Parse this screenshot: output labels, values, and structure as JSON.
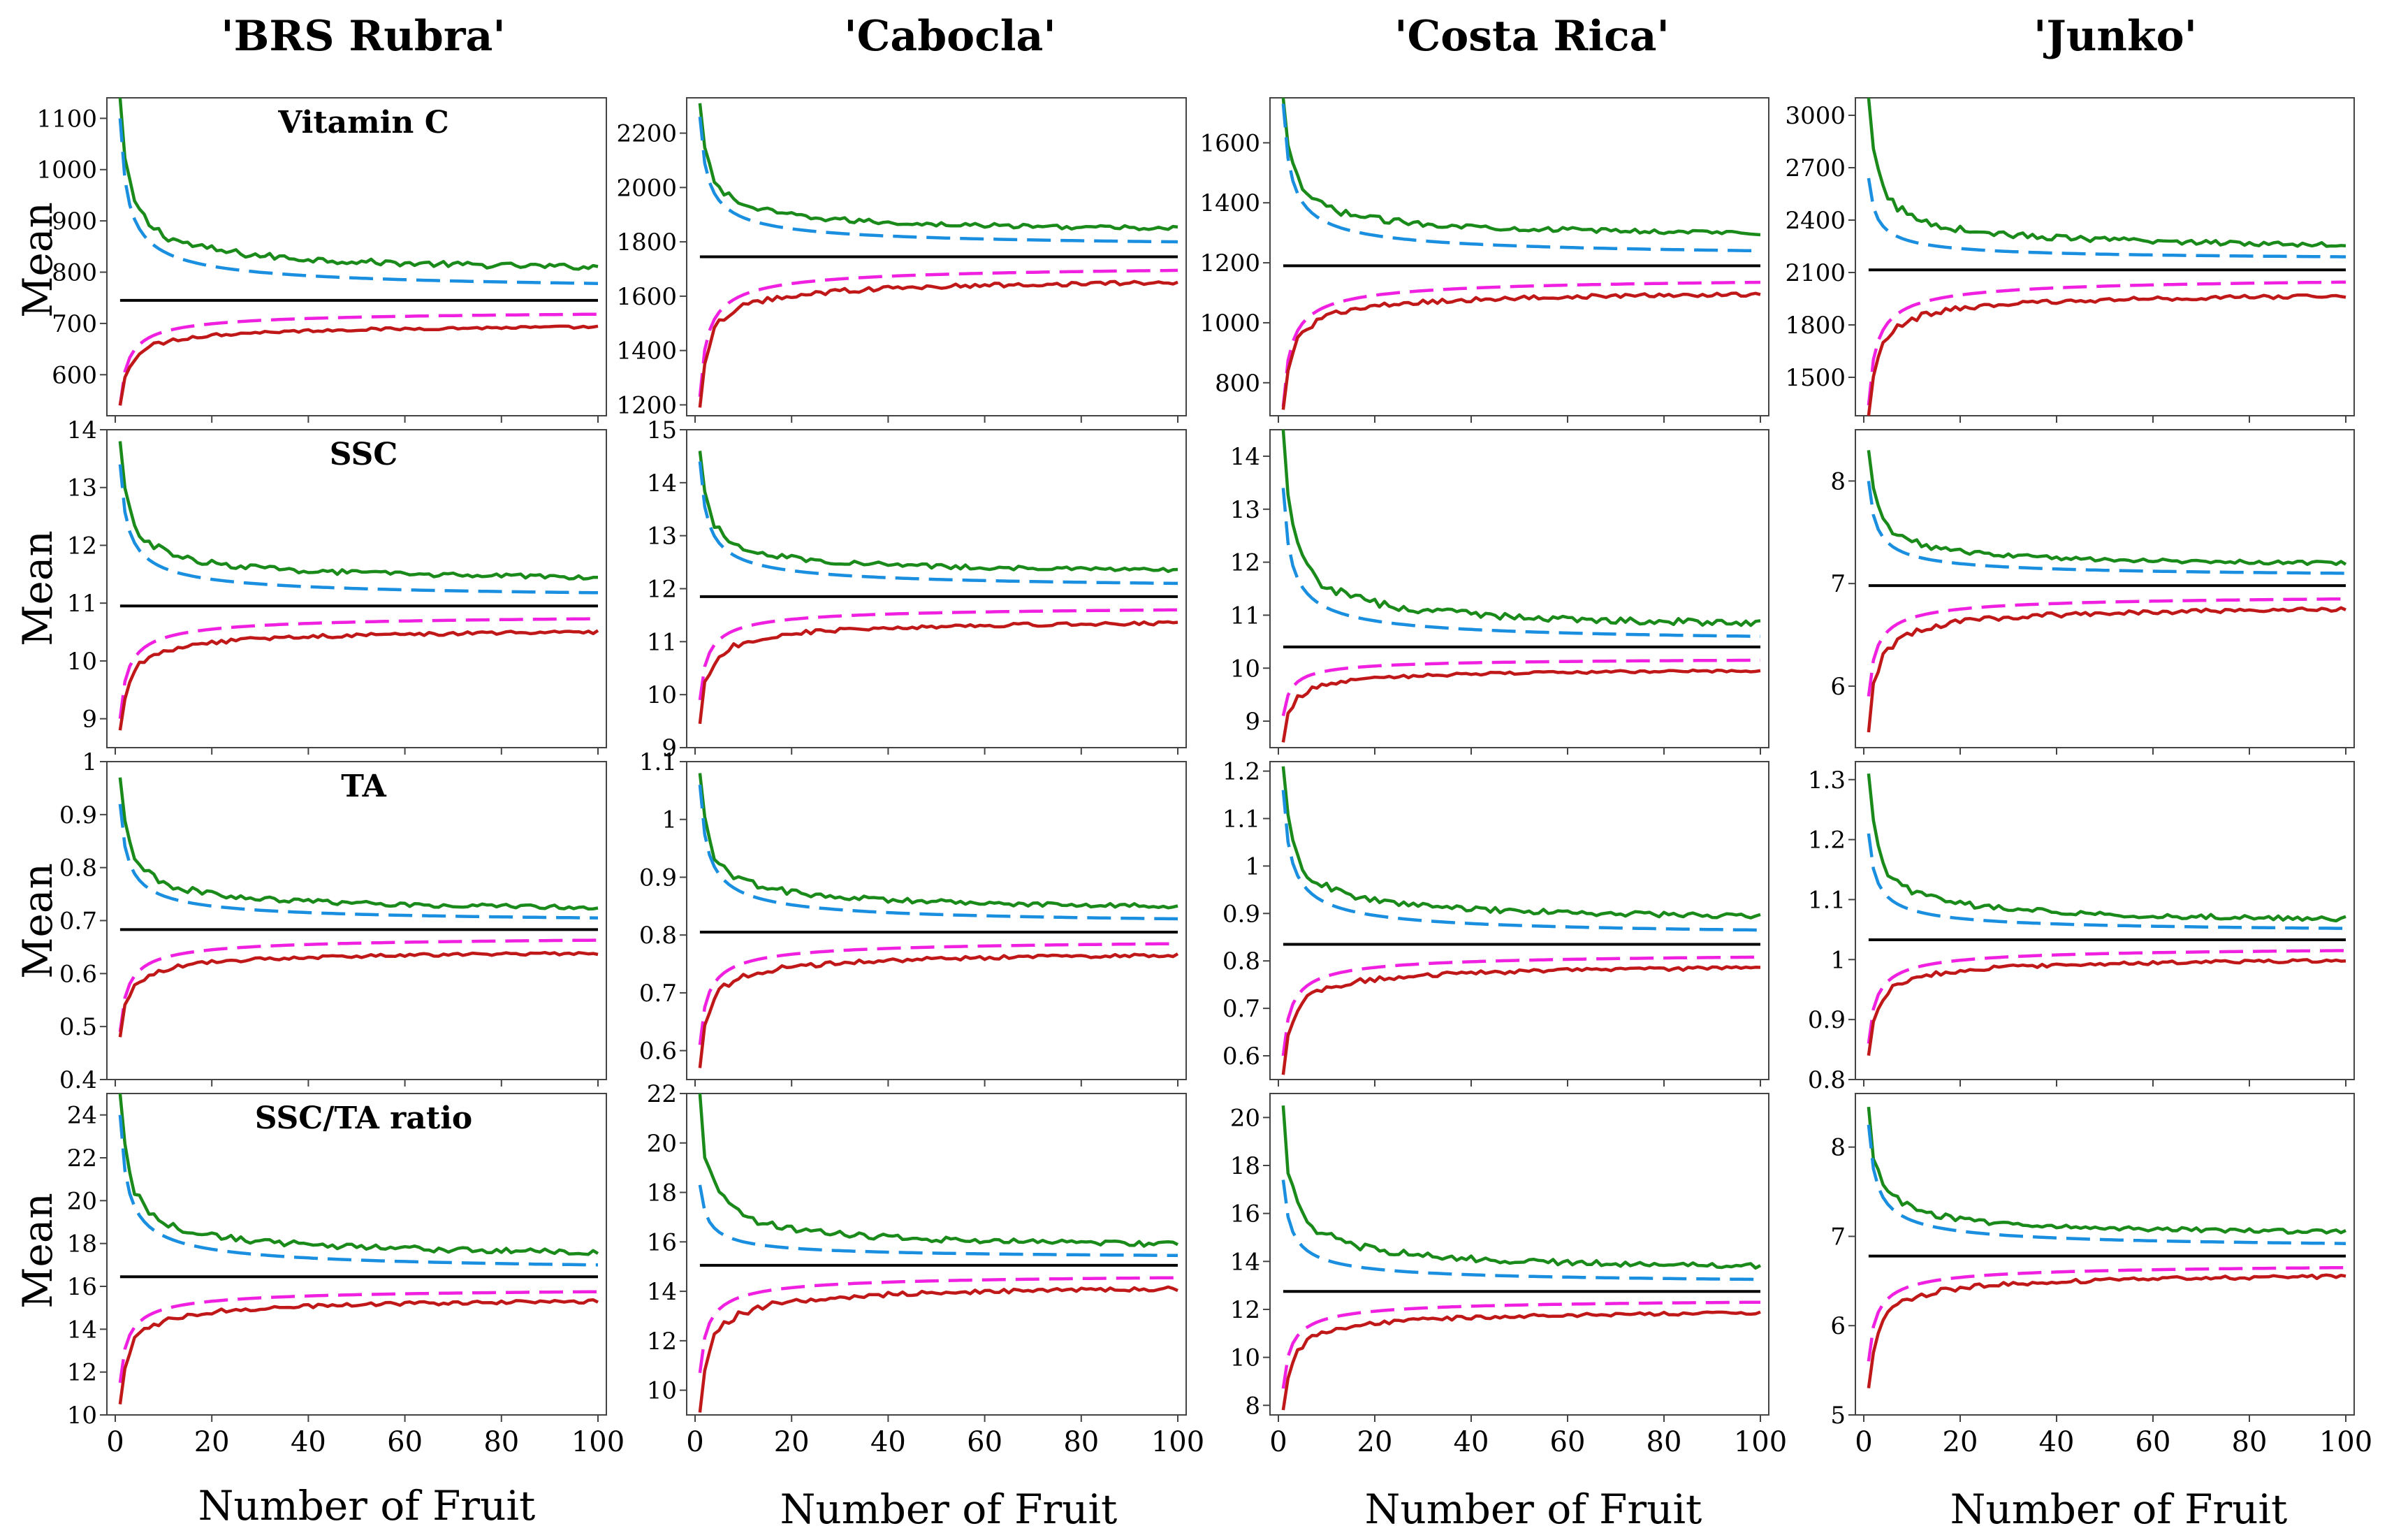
{
  "figure": {
    "column_titles": [
      "'BRS Rubra'",
      "'Cabocla'",
      "'Costa Rica'",
      "'Junko'"
    ],
    "row_titles": [
      "Vitamin C",
      "SSC",
      "TA",
      "SSC/TA ratio"
    ],
    "ylabel": "Mean",
    "xlabel": "Number of Fruit",
    "x_ticks": [
      0,
      20,
      40,
      60,
      80,
      100
    ],
    "colors": {
      "upper_solid": "#1a8a1a",
      "upper_dashed": "#1a8fe0",
      "mean": "#000000",
      "lower_dashed": "#f020e0",
      "lower_solid": "#c01818"
    }
  },
  "chart_data": [
    {
      "type": "line",
      "cultivar": "'BRS Rubra'",
      "variable": "Vitamin C",
      "row_title": "Vitamin C",
      "ylim": [
        520,
        1140
      ],
      "yticks": [
        600,
        700,
        800,
        900,
        1000,
        1100
      ],
      "x": [
        1,
        100
      ],
      "series": [
        {
          "role": "upper_solid",
          "start": 1140,
          "end": 810
        },
        {
          "role": "upper_dashed",
          "start": 1100,
          "end": 778
        },
        {
          "role": "mean",
          "start": 745,
          "end": 745
        },
        {
          "role": "lower_dashed",
          "start": 540,
          "end": 718
        },
        {
          "role": "lower_solid",
          "start": 540,
          "end": 693
        }
      ]
    },
    {
      "type": "line",
      "cultivar": "'Cabocla'",
      "variable": "Vitamin C",
      "ylim": [
        1160,
        2330
      ],
      "yticks": [
        1200,
        1400,
        1600,
        1800,
        2000,
        2200
      ],
      "x": [
        1,
        100
      ],
      "series": [
        {
          "role": "upper_solid",
          "start": 2310,
          "end": 1850
        },
        {
          "role": "upper_dashed",
          "start": 2260,
          "end": 1800
        },
        {
          "role": "mean",
          "start": 1745,
          "end": 1745
        },
        {
          "role": "lower_dashed",
          "start": 1230,
          "end": 1695
        },
        {
          "role": "lower_solid",
          "start": 1190,
          "end": 1650
        }
      ]
    },
    {
      "type": "line",
      "cultivar": "'Costa Rica'",
      "variable": "Vitamin C",
      "ylim": [
        690,
        1750
      ],
      "yticks": [
        800,
        1000,
        1200,
        1400,
        1600
      ],
      "x": [
        1,
        100
      ],
      "series": [
        {
          "role": "upper_solid",
          "start": 1750,
          "end": 1300
        },
        {
          "role": "upper_dashed",
          "start": 1730,
          "end": 1240
        },
        {
          "role": "mean",
          "start": 1190,
          "end": 1190
        },
        {
          "role": "lower_dashed",
          "start": 720,
          "end": 1135
        },
        {
          "role": "lower_solid",
          "start": 710,
          "end": 1095
        }
      ]
    },
    {
      "type": "line",
      "cultivar": "'Junko'",
      "variable": "Vitamin C",
      "ylim": [
        1280,
        3100
      ],
      "yticks": [
        1500,
        1800,
        2100,
        2400,
        2700,
        3000
      ],
      "x": [
        1,
        100
      ],
      "series": [
        {
          "role": "upper_solid",
          "start": 3100,
          "end": 2260
        },
        {
          "role": "upper_dashed",
          "start": 2640,
          "end": 2190
        },
        {
          "role": "mean",
          "start": 2115,
          "end": 2115
        },
        {
          "role": "lower_dashed",
          "start": 1340,
          "end": 2045
        },
        {
          "role": "lower_solid",
          "start": 1280,
          "end": 1965
        }
      ]
    },
    {
      "type": "line",
      "cultivar": "'BRS Rubra'",
      "variable": "SSC",
      "row_title": "SSC",
      "ylim": [
        8.5,
        14
      ],
      "yticks": [
        9,
        10,
        11,
        12,
        13,
        14
      ],
      "x": [
        1,
        100
      ],
      "series": [
        {
          "role": "upper_solid",
          "start": 13.8,
          "end": 11.45
        },
        {
          "role": "upper_dashed",
          "start": 13.4,
          "end": 11.18
        },
        {
          "role": "mean",
          "start": 10.95,
          "end": 10.95
        },
        {
          "role": "lower_dashed",
          "start": 9.0,
          "end": 10.73
        },
        {
          "role": "lower_solid",
          "start": 8.8,
          "end": 10.5
        }
      ]
    },
    {
      "type": "line",
      "cultivar": "'Cabocla'",
      "variable": "SSC",
      "ylim": [
        9,
        15
      ],
      "yticks": [
        9,
        10,
        11,
        12,
        13,
        14,
        15
      ],
      "x": [
        1,
        100
      ],
      "series": [
        {
          "role": "upper_solid",
          "start": 14.6,
          "end": 12.35
        },
        {
          "role": "upper_dashed",
          "start": 14.4,
          "end": 12.1
        },
        {
          "role": "mean",
          "start": 11.85,
          "end": 11.85
        },
        {
          "role": "lower_dashed",
          "start": 9.9,
          "end": 11.6
        },
        {
          "role": "lower_solid",
          "start": 9.45,
          "end": 11.35
        }
      ]
    },
    {
      "type": "line",
      "cultivar": "'Costa Rica'",
      "variable": "SSC",
      "ylim": [
        8.5,
        14.5
      ],
      "yticks": [
        9,
        10,
        11,
        12,
        13,
        14
      ],
      "x": [
        1,
        100
      ],
      "series": [
        {
          "role": "upper_solid",
          "start": 14.5,
          "end": 10.85
        },
        {
          "role": "upper_dashed",
          "start": 13.4,
          "end": 10.6
        },
        {
          "role": "mean",
          "start": 10.4,
          "end": 10.4
        },
        {
          "role": "lower_dashed",
          "start": 9.1,
          "end": 10.15
        },
        {
          "role": "lower_solid",
          "start": 8.6,
          "end": 9.95
        }
      ]
    },
    {
      "type": "line",
      "cultivar": "'Junko'",
      "variable": "SSC",
      "ylim": [
        5.4,
        8.5
      ],
      "yticks": [
        6,
        7,
        8
      ],
      "x": [
        1,
        100
      ],
      "series": [
        {
          "role": "upper_solid",
          "start": 8.3,
          "end": 7.2
        },
        {
          "role": "upper_dashed",
          "start": 8.0,
          "end": 7.1
        },
        {
          "role": "mean",
          "start": 6.98,
          "end": 6.98
        },
        {
          "role": "lower_dashed",
          "start": 5.9,
          "end": 6.85
        },
        {
          "role": "lower_solid",
          "start": 5.55,
          "end": 6.75
        }
      ]
    },
    {
      "type": "line",
      "cultivar": "'BRS Rubra'",
      "variable": "TA",
      "row_title": "TA",
      "ylim": [
        0.4,
        1.0
      ],
      "yticks": [
        0.4,
        0.5,
        0.6,
        0.7,
        0.8,
        0.9,
        1.0
      ],
      "x": [
        1,
        100
      ],
      "series": [
        {
          "role": "upper_solid",
          "start": 0.97,
          "end": 0.725
        },
        {
          "role": "upper_dashed",
          "start": 0.92,
          "end": 0.705
        },
        {
          "role": "mean",
          "start": 0.683,
          "end": 0.683
        },
        {
          "role": "lower_dashed",
          "start": 0.49,
          "end": 0.663
        },
        {
          "role": "lower_solid",
          "start": 0.48,
          "end": 0.638
        }
      ]
    },
    {
      "type": "line",
      "cultivar": "'Cabocla'",
      "variable": "TA",
      "ylim": [
        0.55,
        1.1
      ],
      "yticks": [
        0.6,
        0.7,
        0.8,
        0.9,
        1.0,
        1.1
      ],
      "x": [
        1,
        100
      ],
      "series": [
        {
          "role": "upper_solid",
          "start": 1.08,
          "end": 0.85
        },
        {
          "role": "upper_dashed",
          "start": 1.06,
          "end": 0.828
        },
        {
          "role": "mean",
          "start": 0.805,
          "end": 0.805
        },
        {
          "role": "lower_dashed",
          "start": 0.61,
          "end": 0.785
        },
        {
          "role": "lower_solid",
          "start": 0.57,
          "end": 0.765
        }
      ]
    },
    {
      "type": "line",
      "cultivar": "'Costa Rica'",
      "variable": "TA",
      "ylim": [
        0.55,
        1.22
      ],
      "yticks": [
        0.6,
        0.7,
        0.8,
        0.9,
        1.0,
        1.1,
        1.2
      ],
      "x": [
        1,
        100
      ],
      "series": [
        {
          "role": "upper_solid",
          "start": 1.21,
          "end": 0.895
        },
        {
          "role": "upper_dashed",
          "start": 1.16,
          "end": 0.865
        },
        {
          "role": "mean",
          "start": 0.835,
          "end": 0.835
        },
        {
          "role": "lower_dashed",
          "start": 0.6,
          "end": 0.808
        },
        {
          "role": "lower_solid",
          "start": 0.56,
          "end": 0.785
        }
      ]
    },
    {
      "type": "line",
      "cultivar": "'Junko'",
      "variable": "TA",
      "ylim": [
        0.8,
        1.33
      ],
      "yticks": [
        0.8,
        0.9,
        1.0,
        1.1,
        1.2,
        1.3
      ],
      "x": [
        1,
        100
      ],
      "series": [
        {
          "role": "upper_solid",
          "start": 1.31,
          "end": 1.068
        },
        {
          "role": "upper_dashed",
          "start": 1.21,
          "end": 1.052
        },
        {
          "role": "mean",
          "start": 1.033,
          "end": 1.033
        },
        {
          "role": "lower_dashed",
          "start": 0.86,
          "end": 1.015
        },
        {
          "role": "lower_solid",
          "start": 0.84,
          "end": 0.998
        }
      ]
    },
    {
      "type": "line",
      "cultivar": "'BRS Rubra'",
      "variable": "SSC/TA ratio",
      "row_title": "SSC/TA ratio",
      "ylim": [
        10,
        25
      ],
      "yticks": [
        10,
        12,
        14,
        16,
        18,
        20,
        22,
        24
      ],
      "x": [
        1,
        100
      ],
      "series": [
        {
          "role": "upper_solid",
          "start": 25.0,
          "end": 17.6
        },
        {
          "role": "upper_dashed",
          "start": 24.0,
          "end": 17.0
        },
        {
          "role": "mean",
          "start": 16.45,
          "end": 16.45
        },
        {
          "role": "lower_dashed",
          "start": 11.5,
          "end": 15.75
        },
        {
          "role": "lower_solid",
          "start": 10.5,
          "end": 15.3
        }
      ]
    },
    {
      "type": "line",
      "cultivar": "'Cabocla'",
      "variable": "SSC/TA ratio",
      "ylim": [
        9,
        22
      ],
      "yticks": [
        10,
        12,
        14,
        16,
        18,
        20,
        22
      ],
      "x": [
        1,
        100
      ],
      "series": [
        {
          "role": "upper_solid",
          "start": 22.0,
          "end": 15.9
        },
        {
          "role": "upper_dashed",
          "start": 18.3,
          "end": 15.45
        },
        {
          "role": "mean",
          "start": 15.05,
          "end": 15.05
        },
        {
          "role": "lower_dashed",
          "start": 10.7,
          "end": 14.55
        },
        {
          "role": "lower_solid",
          "start": 9.1,
          "end": 14.1
        }
      ]
    },
    {
      "type": "line",
      "cultivar": "'Costa Rica'",
      "variable": "SSC/TA ratio",
      "ylim": [
        7.6,
        21
      ],
      "yticks": [
        8,
        10,
        12,
        14,
        16,
        18,
        20
      ],
      "x": [
        1,
        100
      ],
      "series": [
        {
          "role": "upper_solid",
          "start": 20.5,
          "end": 13.8
        },
        {
          "role": "upper_dashed",
          "start": 17.4,
          "end": 13.25
        },
        {
          "role": "mean",
          "start": 12.75,
          "end": 12.75
        },
        {
          "role": "lower_dashed",
          "start": 8.7,
          "end": 12.3
        },
        {
          "role": "lower_solid",
          "start": 7.8,
          "end": 11.85
        }
      ]
    },
    {
      "type": "line",
      "cultivar": "'Junko'",
      "variable": "SSC/TA ratio",
      "ylim": [
        5,
        8.6
      ],
      "yticks": [
        5,
        6,
        7,
        8
      ],
      "x": [
        1,
        100
      ],
      "series": [
        {
          "role": "upper_solid",
          "start": 8.45,
          "end": 7.05
        },
        {
          "role": "upper_dashed",
          "start": 8.25,
          "end": 6.92
        },
        {
          "role": "mean",
          "start": 6.78,
          "end": 6.78
        },
        {
          "role": "lower_dashed",
          "start": 5.6,
          "end": 6.65
        },
        {
          "role": "lower_solid",
          "start": 5.3,
          "end": 6.55
        }
      ]
    }
  ]
}
